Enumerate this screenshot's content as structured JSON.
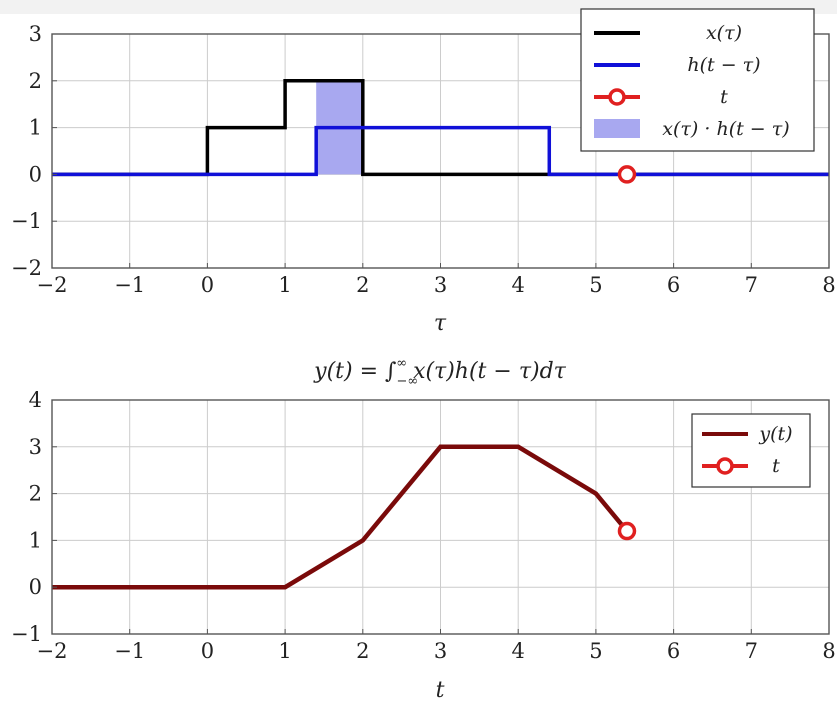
{
  "chart_data": [
    {
      "type": "line",
      "xlabel": "τ",
      "xlim": [
        -2,
        8
      ],
      "ylim": [
        -2,
        3
      ],
      "xticks": [
        -2,
        -1,
        0,
        1,
        2,
        3,
        4,
        5,
        6,
        7,
        8
      ],
      "yticks": [
        -2,
        -1,
        0,
        1,
        2,
        3
      ],
      "grid": true,
      "legend_position": "top-right",
      "series": [
        {
          "name": "x(τ)",
          "color": "#000000",
          "style": "step",
          "points": [
            [
              -2,
              0
            ],
            [
              0,
              0
            ],
            [
              0,
              1
            ],
            [
              1,
              1
            ],
            [
              1,
              2
            ],
            [
              2,
              2
            ],
            [
              2,
              0
            ],
            [
              8,
              0
            ]
          ]
        },
        {
          "name": "h(t − τ)",
          "color": "#1010d8",
          "style": "step",
          "points": [
            [
              -2,
              0
            ],
            [
              1.4,
              0
            ],
            [
              1.4,
              1
            ],
            [
              4.4,
              1
            ],
            [
              4.4,
              0
            ],
            [
              8,
              0
            ]
          ]
        },
        {
          "name": "t",
          "color": "#e02020",
          "style": "marker",
          "points": [
            [
              5.4,
              0
            ]
          ]
        },
        {
          "name": "x(τ) · h(t − τ)",
          "color": "#a8a8f0",
          "style": "area",
          "points": [
            [
              1.4,
              0
            ],
            [
              1.4,
              2
            ],
            [
              2,
              2
            ],
            [
              2,
              0
            ]
          ]
        }
      ]
    },
    {
      "type": "line",
      "title": "y(t) = ∫",
      "title_lower": "−∞",
      "title_upper": "∞",
      "title_rest": "x(τ)h(t − τ)dτ",
      "xlabel": "t",
      "xlim": [
        -2,
        8
      ],
      "ylim": [
        -1,
        4
      ],
      "xticks": [
        -2,
        -1,
        0,
        1,
        2,
        3,
        4,
        5,
        6,
        7,
        8
      ],
      "yticks": [
        -1,
        0,
        1,
        2,
        3,
        4
      ],
      "grid": true,
      "legend_position": "top-right",
      "series": [
        {
          "name": "y(t)",
          "color": "#7a0a0a",
          "style": "line",
          "points": [
            [
              -2,
              0
            ],
            [
              1,
              0
            ],
            [
              2,
              1
            ],
            [
              3,
              3
            ],
            [
              4,
              3
            ],
            [
              5,
              2
            ],
            [
              5.4,
              1.2
            ]
          ]
        },
        {
          "name": "t",
          "color": "#e02020",
          "style": "marker",
          "points": [
            [
              5.4,
              1.2
            ]
          ]
        }
      ]
    }
  ]
}
